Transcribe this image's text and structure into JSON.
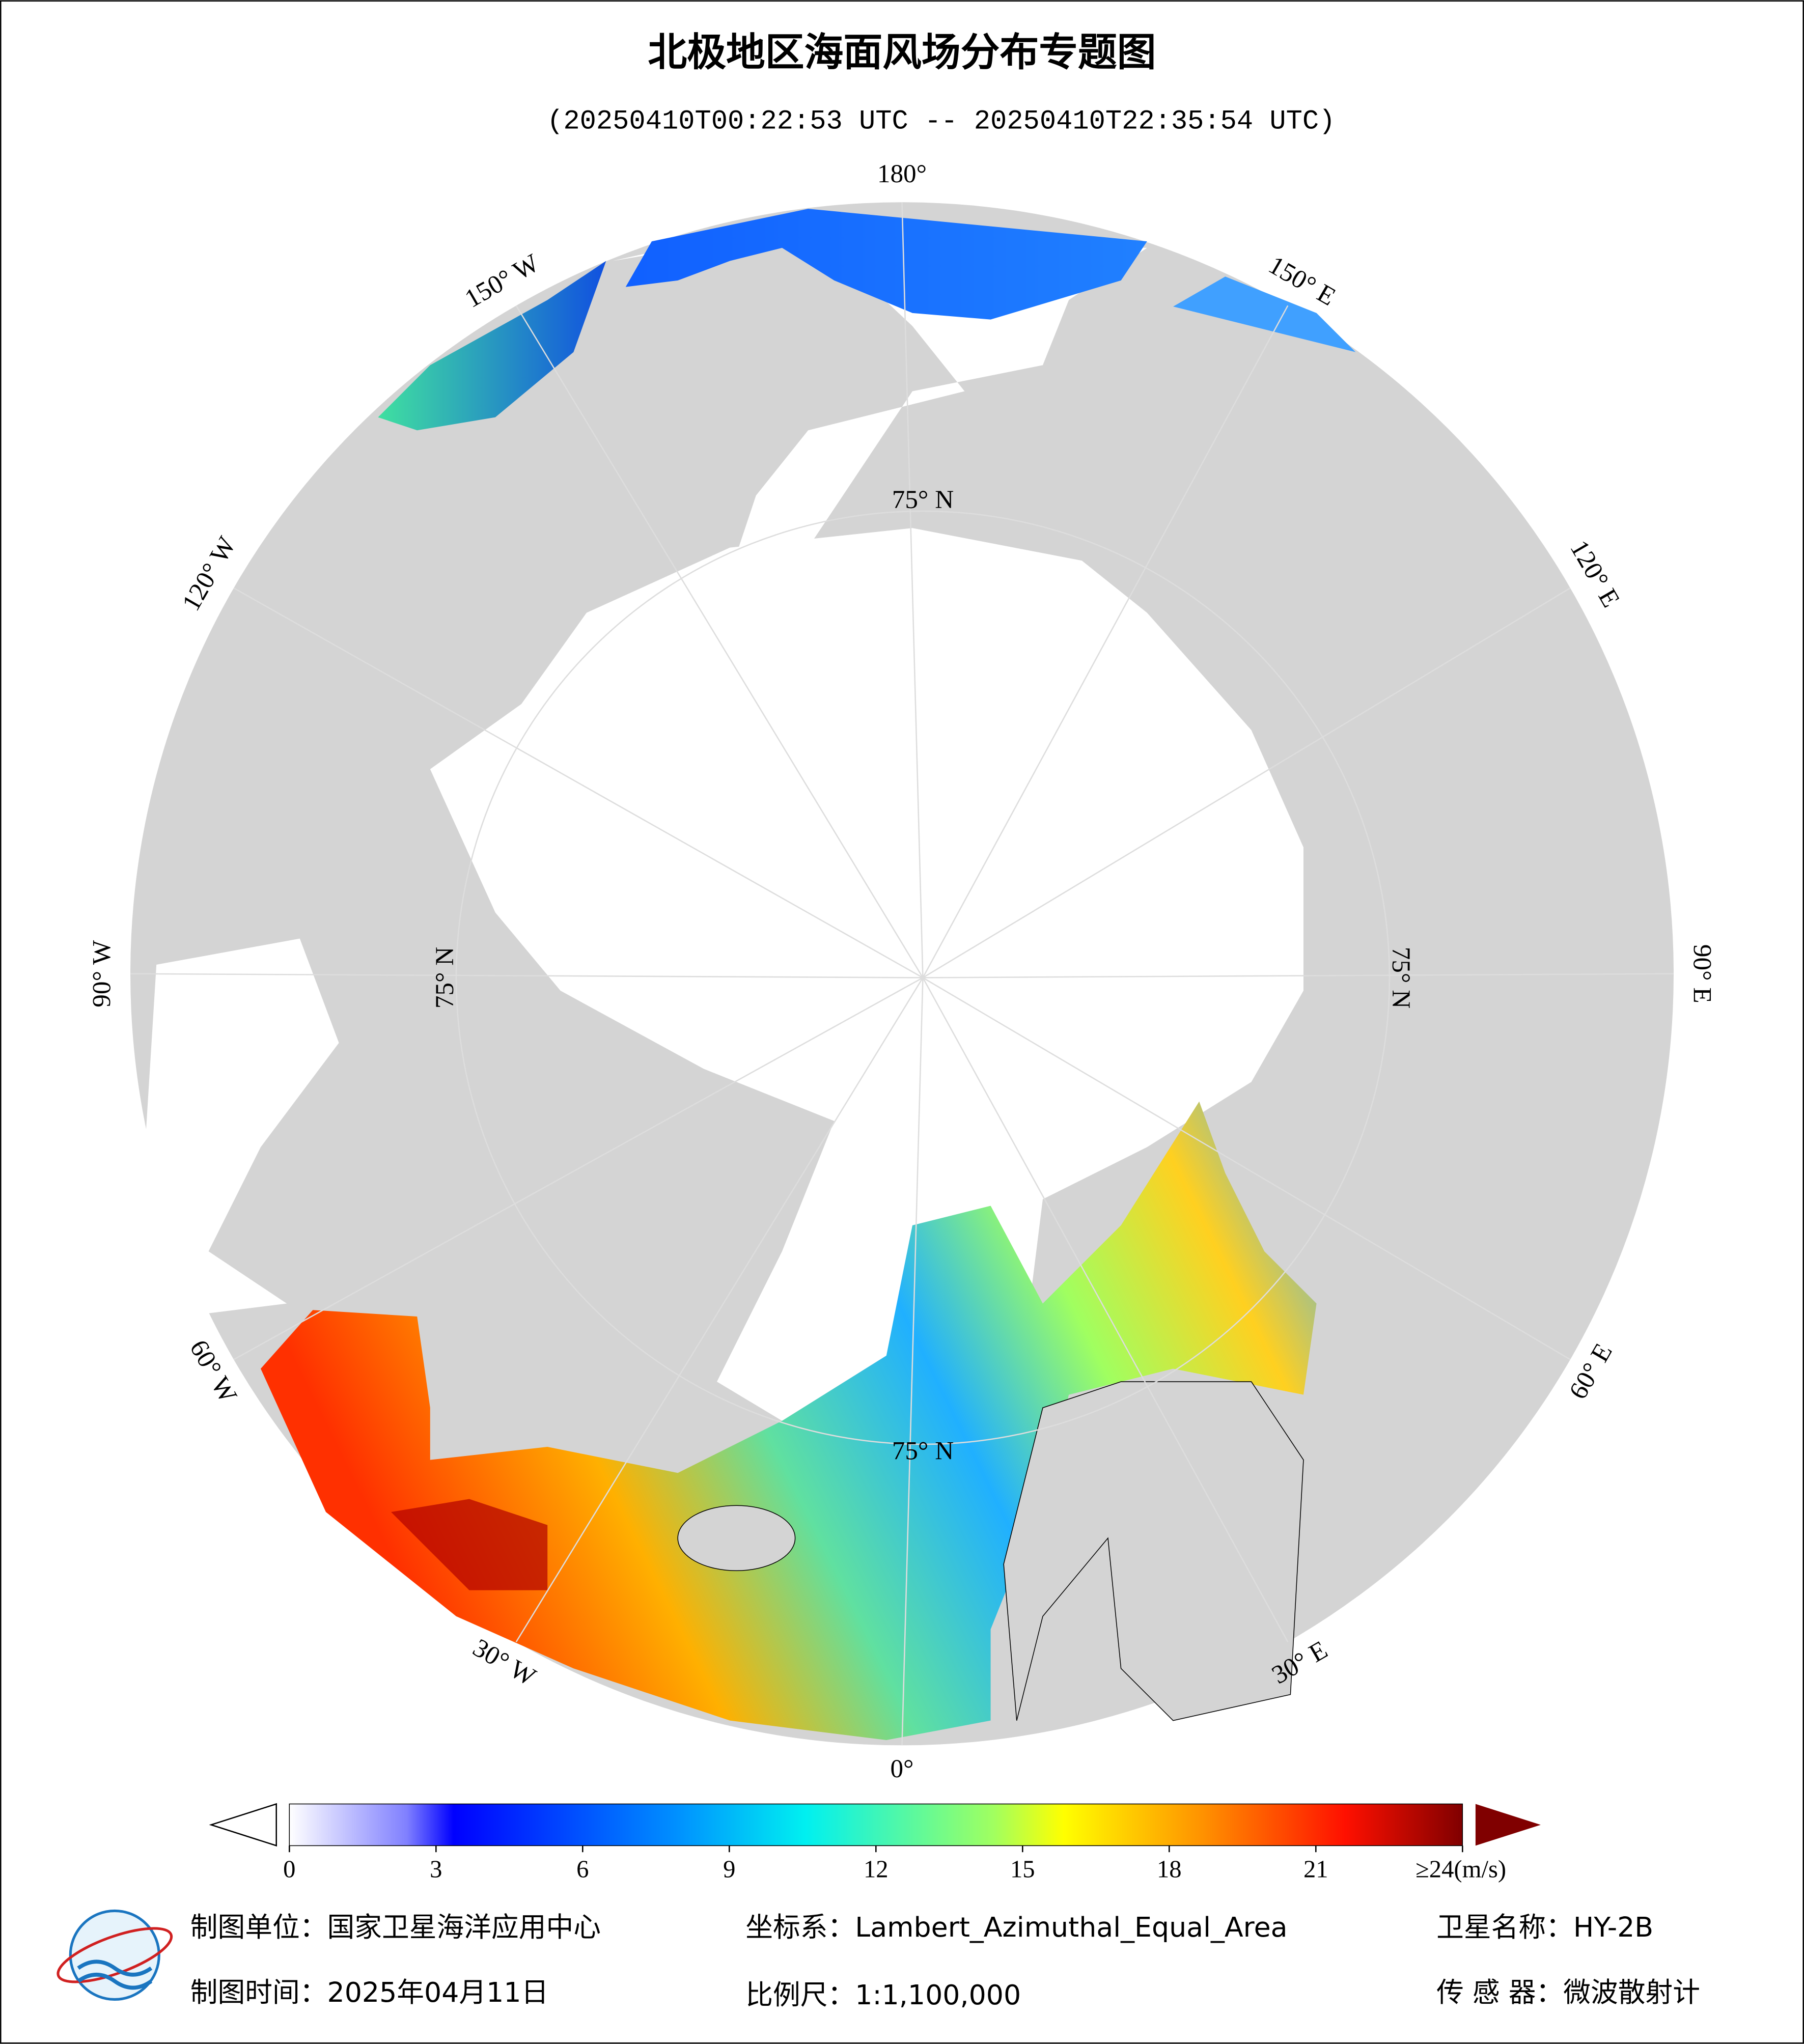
{
  "title": "北极地区海面风场分布专题图",
  "subtitle": "(20250410T00:22:53 UTC -- 20250410T22:35:54 UTC)",
  "map": {
    "longitude_labels": [
      "180°",
      "150° E",
      "120° E",
      "90° E",
      "60° E",
      "30° E",
      "0°",
      "30° W",
      "60° W",
      "90° W",
      "120° W",
      "150° W"
    ],
    "latitude_label": "75° N"
  },
  "colorbar": {
    "lim": [
      0,
      24
    ],
    "ticks": [
      0,
      3,
      6,
      9,
      12,
      15,
      18,
      21,
      {
        "value": 24,
        "label": "≥24(m/s)"
      }
    ]
  },
  "footer": {
    "unit": "制图单位：国家卫星海洋应用中心",
    "crs": "坐标系：Lambert_Azimuthal_Equal_Area",
    "satellite": "卫星名称：HY-2B",
    "date": "制图时间：2025年04月11日",
    "scale": "比例尺：1:1,100,000",
    "sensor": "传 感 器：微波散射计"
  }
}
